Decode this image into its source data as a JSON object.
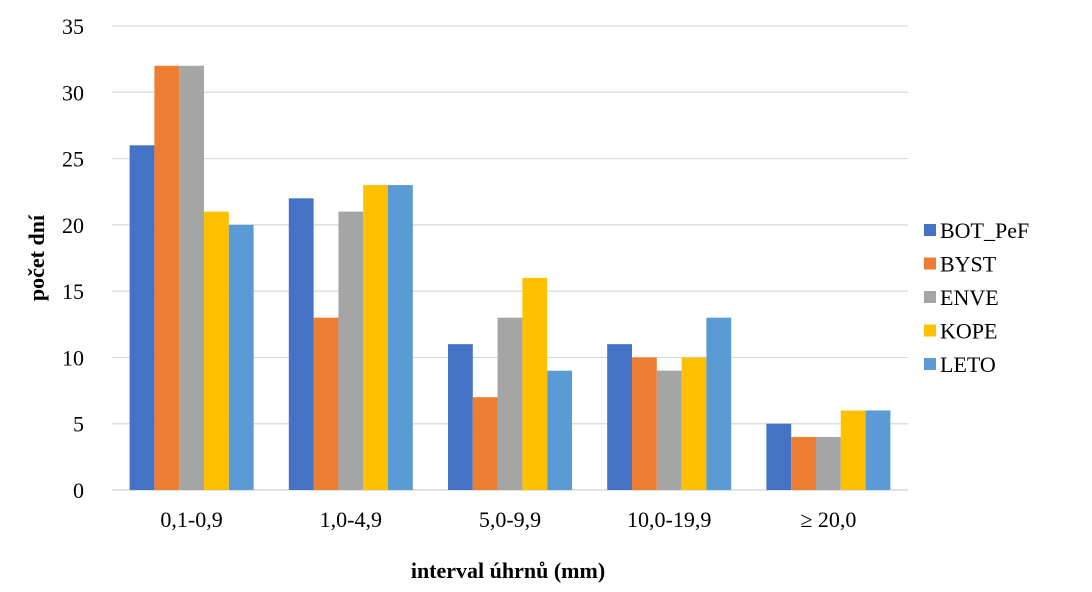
{
  "chart_data": {
    "type": "bar",
    "title": "",
    "xlabel": "interval úhrnů (mm)",
    "ylabel": "počet dní",
    "categories": [
      "0,1-0,9",
      "1,0-4,9",
      "5,0-9,9",
      "10,0-19,9",
      "≥ 20,0"
    ],
    "ylim": [
      0,
      35
    ],
    "yticks": [
      0,
      5,
      10,
      15,
      20,
      25,
      30,
      35
    ],
    "grid": true,
    "legend_position": "right",
    "series": [
      {
        "name": "BOT_PeF",
        "color": "#4472C4",
        "values": [
          26,
          22,
          11,
          11,
          5
        ]
      },
      {
        "name": "BYST",
        "color": "#ED7D31",
        "values": [
          32,
          13,
          7,
          10,
          4
        ]
      },
      {
        "name": "ENVE",
        "color": "#A5A5A5",
        "values": [
          32,
          21,
          13,
          9,
          4
        ]
      },
      {
        "name": "KOPE",
        "color": "#FFC000",
        "values": [
          21,
          23,
          16,
          10,
          6
        ]
      },
      {
        "name": "LETO",
        "color": "#5B9BD5",
        "values": [
          20,
          23,
          9,
          13,
          6
        ]
      }
    ]
  }
}
